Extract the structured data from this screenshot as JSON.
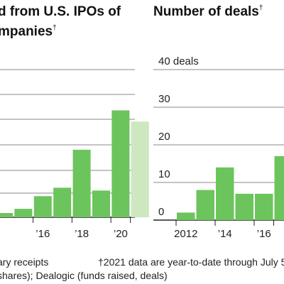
{
  "chart_data": [
    {
      "type": "bar",
      "title": "d from U.S. IPOs of",
      "title_line2": "mpanies",
      "title_mark": "†",
      "categories": [
        "2014",
        "2015",
        "2016",
        "2017",
        "2018",
        "2019",
        "2020",
        "2021"
      ],
      "x_tick_labels": [
        "’16",
        "’18",
        "’20"
      ],
      "values": [
        0.3,
        0.6,
        1.5,
        2.1,
        4.8,
        1.9,
        7.6,
        6.8
      ],
      "ylim": [
        0,
        10.5
      ],
      "highlight_last": true,
      "colors": {
        "bar": "#6cc45c",
        "bar_partial": "#cde7bf",
        "grid": "#888888"
      }
    },
    {
      "type": "bar",
      "title": "Number of deals",
      "title_mark": "†",
      "categories": [
        "2012",
        "2013",
        "2014",
        "2015",
        "2016",
        "2017"
      ],
      "x_tick_labels": [
        "2012",
        "’14",
        "’16"
      ],
      "values": [
        2,
        8,
        14,
        7,
        7,
        17
      ],
      "y_ticks": [
        "0",
        "10",
        "20",
        "30",
        "40"
      ],
      "y_top_label": "40 deals",
      "ylim": [
        0,
        40
      ],
      "colors": {
        "bar": "#6cc45c",
        "grid": "#888888"
      }
    }
  ],
  "footnote": {
    "line1_left": "ary receipts",
    "line1_right": "†2021 data are year-to-date through July 5",
    "line2": "shares); Dealogic (funds raised, deals)"
  }
}
